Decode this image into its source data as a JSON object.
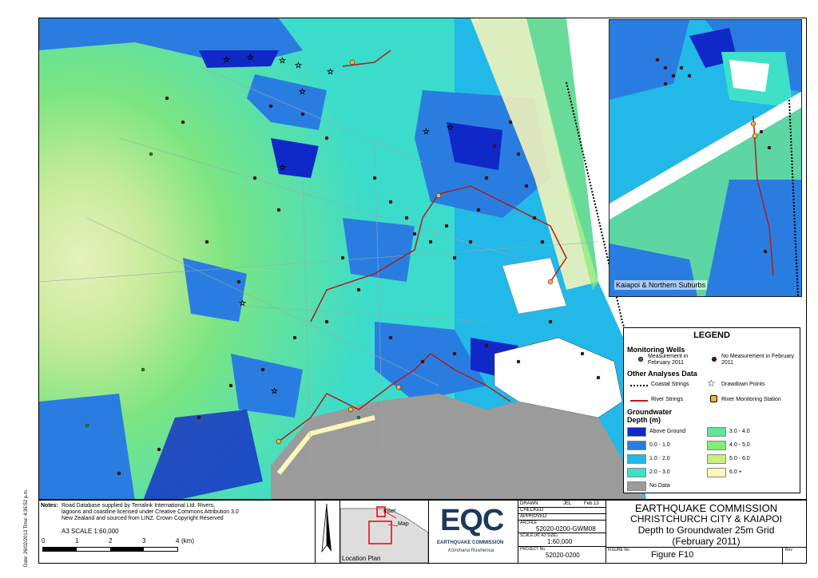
{
  "side_date": "Date: 26/02/2013 Time: 4:35:52 p.m.",
  "inset_caption": "Kaiapoi & Northern Suburbs",
  "legend": {
    "title": "LEGEND",
    "monitoring_wells": "Monitoring Wells",
    "measured": "Measurement in February 2011",
    "not_measured": "No Measurement in February 2011",
    "other_data": "Other Analyses Data",
    "coastal": "Coastal Strings",
    "drawdown": "Drawdown Points",
    "river": "River Strings",
    "river_station": "River Monitoring Station",
    "gw_title": "Groundwater Depth (m)",
    "classes": [
      {
        "label": "Above Ground",
        "color": "#1028c8"
      },
      {
        "label": "0.0 - 1.0",
        "color": "#2a7de0"
      },
      {
        "label": "1.0 - 2.0",
        "color": "#22b8e8"
      },
      {
        "label": "2.0 - 3.0",
        "color": "#3ee0c8"
      },
      {
        "label": "3.0 - 4.0",
        "color": "#5ee69a"
      },
      {
        "label": "4.0 - 5.0",
        "color": "#86ea76"
      },
      {
        "label": "5.0 - 6.0",
        "color": "#c8f07a"
      },
      {
        "label": "6.0 +",
        "color": "#fdf7b8"
      },
      {
        "label": "No Data",
        "color": "#9b9b9b"
      }
    ]
  },
  "notes": {
    "label": "Notes:",
    "text1": "Road Database supplied by Terralink International Ltd. Rivers,",
    "text2": "lagoons and coastline licensed under Creative Commons Attribution 3.0",
    "text3": "New Zealand and sourced from LINZ. Crown Copyright Reserved",
    "scale": "A3 SCALE 1:60,000",
    "ticks": [
      "0",
      "1",
      "2",
      "3",
      "4"
    ],
    "unit": "(km)"
  },
  "location_plan": {
    "label": "Location Plan",
    "inset": "Inset",
    "map": "Map"
  },
  "logo": {
    "name": "EQC",
    "org": "EARTHQUAKE COMMISSION",
    "maori": "Kōmihana Rūwhenua"
  },
  "info": {
    "drawn": "DRAWN",
    "drawn_by": "JEL",
    "drawn_date": "Feb.13",
    "checked": "CHECKED",
    "approved": "APPROVED",
    "file_label": "ARCFILE",
    "file": "52020-0200-GWM08",
    "scale_label": "SCALE (AT A3 SIZE)",
    "scale": "1:60,000",
    "project_label": "PROJECT No.",
    "project": "52020-0200"
  },
  "title": {
    "line1": "EARTHQUAKE COMMISSION",
    "line2": "CHRISTCHURCH CITY & KAIAPOI",
    "line3": "Depth to Groundwater 25m Grid",
    "line4": "(February 2011)",
    "figure_label": "FIGURE No.",
    "figure": "Figure F10",
    "rev": "Rev"
  }
}
